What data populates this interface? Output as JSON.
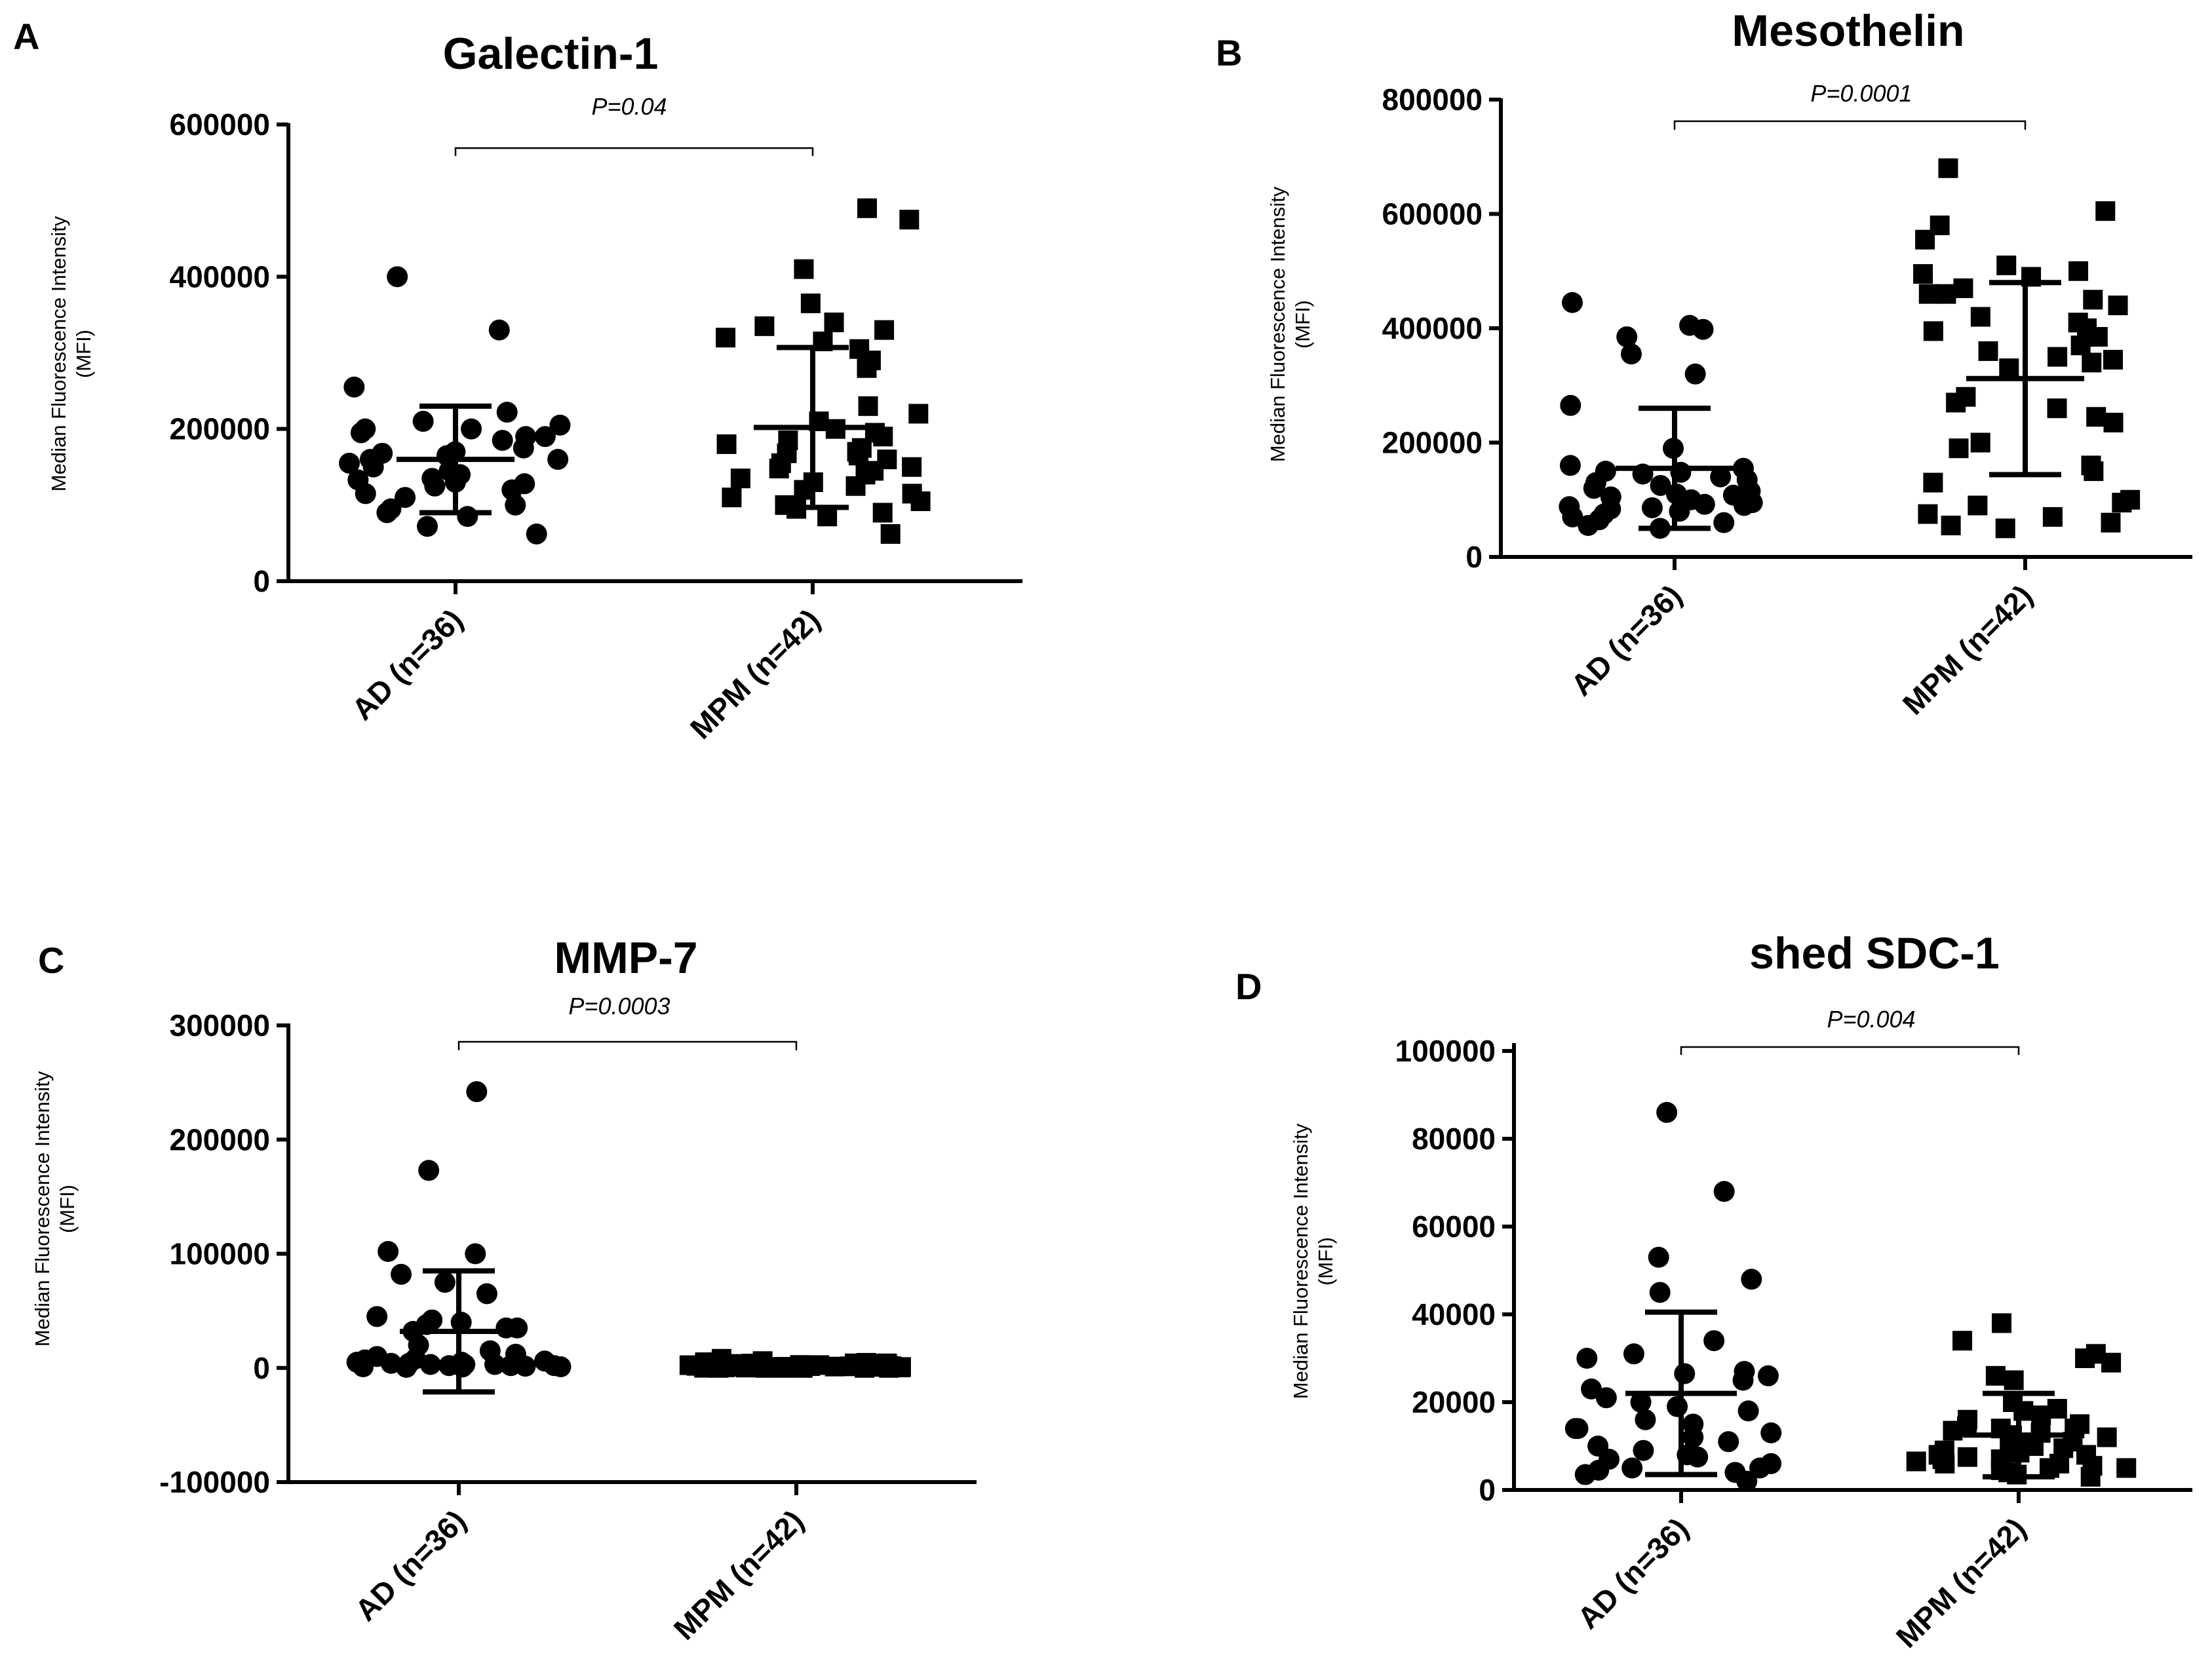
{
  "chart_data": [
    {
      "panel_label": "A",
      "type": "scatter",
      "title": "Galectin-1",
      "ylabel": [
        "Median Fluorescence Intensity",
        "(MFI)"
      ],
      "yticks": [
        "0",
        "200000",
        "400000",
        "600000"
      ],
      "ytick_values": [
        0,
        200000,
        400000,
        600000
      ],
      "ylim": [
        0,
        600000
      ],
      "categories": [
        "AD (n=36)",
        "MPM (n=42)"
      ],
      "p_value": "P=0.04",
      "series": [
        {
          "name": "AD (n=36)",
          "marker": "circle",
          "mean": 160000,
          "sd": 70000,
          "values": [
            400000,
            330000,
            255000,
            222000,
            210000,
            205000,
            200000,
            200000,
            195000,
            190000,
            190000,
            185000,
            175000,
            170000,
            168000,
            165000,
            160000,
            160000,
            155000,
            150000,
            145000,
            140000,
            135000,
            133000,
            130000,
            128000,
            125000,
            120000,
            115000,
            110000,
            100000,
            95000,
            90000,
            85000,
            72000,
            62000
          ]
        },
        {
          "name": "MPM (n=42)",
          "marker": "square",
          "mean": 202000,
          "sd": 105000,
          "values": [
            490000,
            475000,
            410000,
            365000,
            340000,
            335000,
            330000,
            320000,
            315000,
            305000,
            290000,
            280000,
            230000,
            220000,
            210000,
            200000,
            195000,
            190000,
            185000,
            180000,
            175000,
            170000,
            168000,
            165000,
            160000,
            155000,
            150000,
            148000,
            145000,
            140000,
            135000,
            130000,
            125000,
            120000,
            115000,
            110000,
            105000,
            100000,
            95000,
            90000,
            85000,
            62000
          ]
        }
      ]
    },
    {
      "panel_label": "B",
      "type": "scatter",
      "title": "Mesothelin",
      "ylabel": [
        "Median Fluorescence Intensity",
        "(MFI)"
      ],
      "yticks": [
        "0",
        "200000",
        "400000",
        "600000",
        "800000"
      ],
      "ytick_values": [
        0,
        200000,
        400000,
        600000,
        800000
      ],
      "ylim": [
        0,
        800000
      ],
      "categories": [
        "AD (n=36)",
        "MPM (n=42)"
      ],
      "p_value": "P=0.0001",
      "series": [
        {
          "name": "AD (n=36)",
          "marker": "circle",
          "mean": 155000,
          "sd": 105000,
          "values": [
            445000,
            405000,
            398000,
            385000,
            355000,
            320000,
            265000,
            190000,
            160000,
            155000,
            150000,
            148000,
            145000,
            140000,
            135000,
            130000,
            125000,
            120000,
            115000,
            110000,
            108000,
            105000,
            100000,
            95000,
            92000,
            90000,
            88000,
            86000,
            84000,
            80000,
            75000,
            70000,
            65000,
            60000,
            55000,
            50000
          ]
        },
        {
          "name": "MPM (n=42)",
          "marker": "square",
          "mean": 312000,
          "sd": 168000,
          "values": [
            680000,
            605000,
            580000,
            555000,
            510000,
            500000,
            495000,
            490000,
            470000,
            460000,
            460000,
            450000,
            440000,
            420000,
            410000,
            400000,
            395000,
            385000,
            370000,
            360000,
            350000,
            345000,
            340000,
            330000,
            280000,
            270000,
            260000,
            245000,
            235000,
            200000,
            190000,
            160000,
            150000,
            130000,
            100000,
            95000,
            90000,
            75000,
            70000,
            60000,
            55000,
            50000
          ]
        }
      ]
    },
    {
      "panel_label": "C",
      "type": "scatter",
      "title": "MMP-7",
      "ylabel": [
        "Median Fluorescence Intensity",
        "(MFI)"
      ],
      "yticks": [
        "-100000",
        "0",
        "100000",
        "200000",
        "300000"
      ],
      "ytick_values": [
        -100000,
        0,
        100000,
        200000,
        300000
      ],
      "ylim": [
        -100000,
        300000
      ],
      "categories": [
        "AD (n=36)",
        "MPM (n=42)"
      ],
      "p_value": "P=0.0003",
      "series": [
        {
          "name": "AD (n=36)",
          "marker": "circle",
          "mean": 32000,
          "sd": 53000,
          "values": [
            242000,
            173000,
            102000,
            100000,
            82000,
            75000,
            65000,
            45000,
            42000,
            40000,
            38000,
            35000,
            35000,
            32000,
            20000,
            15000,
            12000,
            10000,
            8000,
            7000,
            6000,
            5000,
            5000,
            4000,
            4000,
            3000,
            3000,
            3000,
            2000,
            2000,
            2000,
            1500,
            1000,
            1000,
            800,
            500
          ]
        },
        {
          "name": "MPM (n=42)",
          "marker": "square",
          "mean": 2000,
          "sd": 2000,
          "values": [
            8000,
            6000,
            5000,
            5000,
            4500,
            4000,
            4000,
            3800,
            3500,
            3500,
            3200,
            3000,
            3000,
            2800,
            2600,
            2500,
            2400,
            2200,
            2000,
            2000,
            1800,
            1600,
            1500,
            1400,
            1200,
            1000,
            1000,
            900,
            800,
            700,
            600,
            500,
            400,
            300,
            200,
            100,
            0,
            0,
            0,
            0,
            0,
            0
          ]
        }
      ]
    },
    {
      "panel_label": "D",
      "type": "scatter",
      "title": "shed SDC-1",
      "ylabel": [
        "Median Fluorescence Intensity",
        "(MFI)"
      ],
      "yticks": [
        "0",
        "20000",
        "40000",
        "60000",
        "80000",
        "100000"
      ],
      "ytick_values": [
        0,
        20000,
        40000,
        60000,
        80000,
        100000
      ],
      "ylim": [
        0,
        100000
      ],
      "categories": [
        "AD (n=36)",
        "MPM (n=42)"
      ],
      "p_value": "P=0.004",
      "series": [
        {
          "name": "AD (n=36)",
          "marker": "circle",
          "mean": 22000,
          "sd": 18500,
          "values": [
            86000,
            68000,
            53000,
            48000,
            45000,
            34000,
            31000,
            30000,
            27000,
            26500,
            26000,
            25000,
            23000,
            21000,
            20000,
            19000,
            18000,
            16000,
            15000,
            14000,
            14000,
            13000,
            12000,
            11000,
            10000,
            9000,
            8000,
            7500,
            7000,
            6000,
            5000,
            5000,
            4500,
            4000,
            3500,
            2000
          ]
        },
        {
          "name": "MPM (n=42)",
          "marker": "square",
          "mean": 12500,
          "sd": 9500,
          "values": [
            38000,
            34000,
            31000,
            30000,
            29000,
            26000,
            25000,
            20000,
            18500,
            18000,
            17000,
            16000,
            15000,
            14500,
            14000,
            14000,
            13500,
            13000,
            12500,
            12000,
            11000,
            11000,
            10000,
            10000,
            9500,
            9000,
            8500,
            8000,
            8000,
            7500,
            7000,
            7000,
            6500,
            6000,
            6000,
            5500,
            5000,
            5000,
            4500,
            4000,
            3500,
            3000
          ]
        }
      ]
    }
  ]
}
